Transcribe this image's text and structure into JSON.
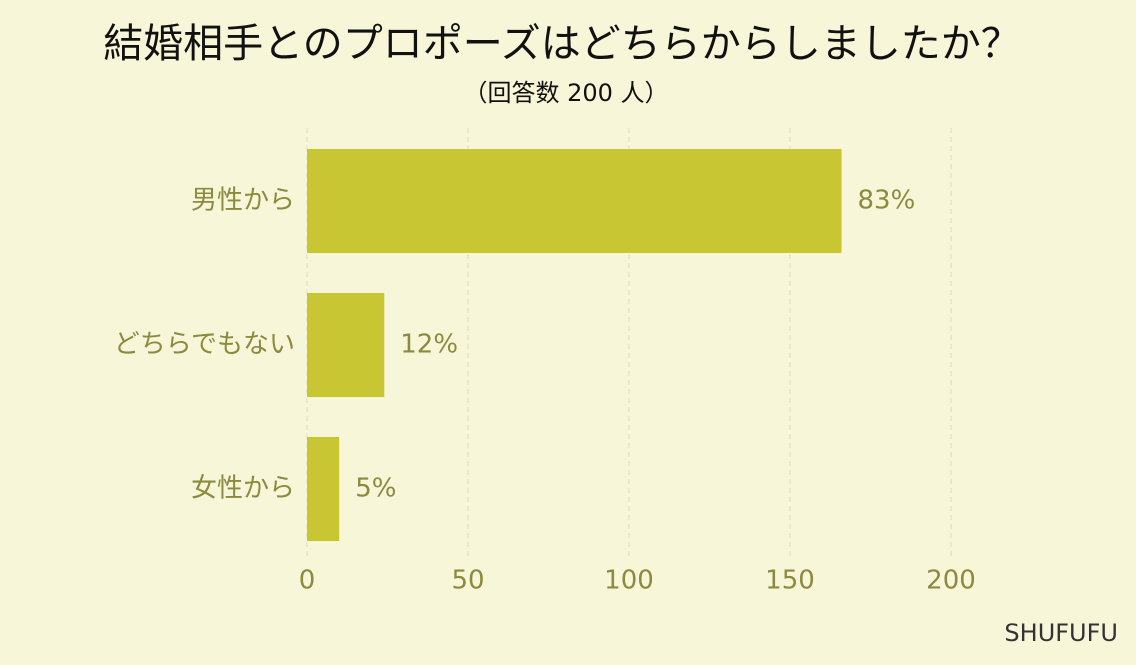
{
  "chart_data": {
    "type": "bar",
    "orientation": "horizontal",
    "title": "結婚相手とのプロポーズはどちらからしましたか？",
    "subtitle": "（回答数 200 人）",
    "source": "SHUFUFU",
    "categories": [
      "男性から",
      "どちらでもない",
      "女性から"
    ],
    "values": [
      166,
      24,
      10
    ],
    "value_labels": [
      "83%",
      "12%",
      "5%"
    ],
    "color": "#c9c634",
    "xlim": [
      0,
      200
    ],
    "xticks": [
      0,
      50,
      100,
      150,
      200
    ],
    "grid": true
  }
}
